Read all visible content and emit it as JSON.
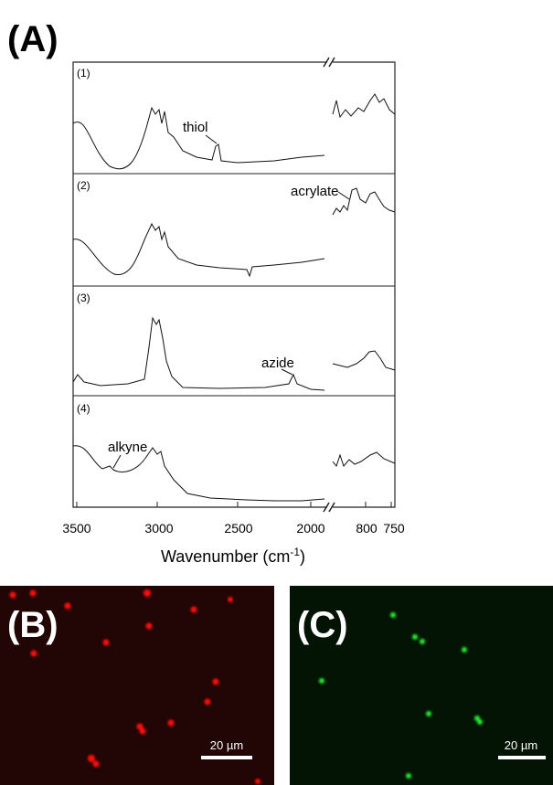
{
  "figure": {
    "panel_labels": [
      "(A)",
      "(B)",
      "(C)"
    ],
    "spectra": {
      "labels": [
        "(1)",
        "(2)",
        "(3)",
        "(4)"
      ],
      "annotations": [
        "thiol",
        "acrylate",
        "azide",
        "alkyne"
      ],
      "x_tick_labels": [
        "3500",
        "3000",
        "2500",
        "2000",
        "800",
        "750"
      ],
      "x_axis_title": "Wavenumber (cm",
      "x_axis_title_sup": "-1",
      "x_axis_title_end": ")"
    },
    "scale_bars": [
      "20 µm",
      "20 µm"
    ]
  }
}
